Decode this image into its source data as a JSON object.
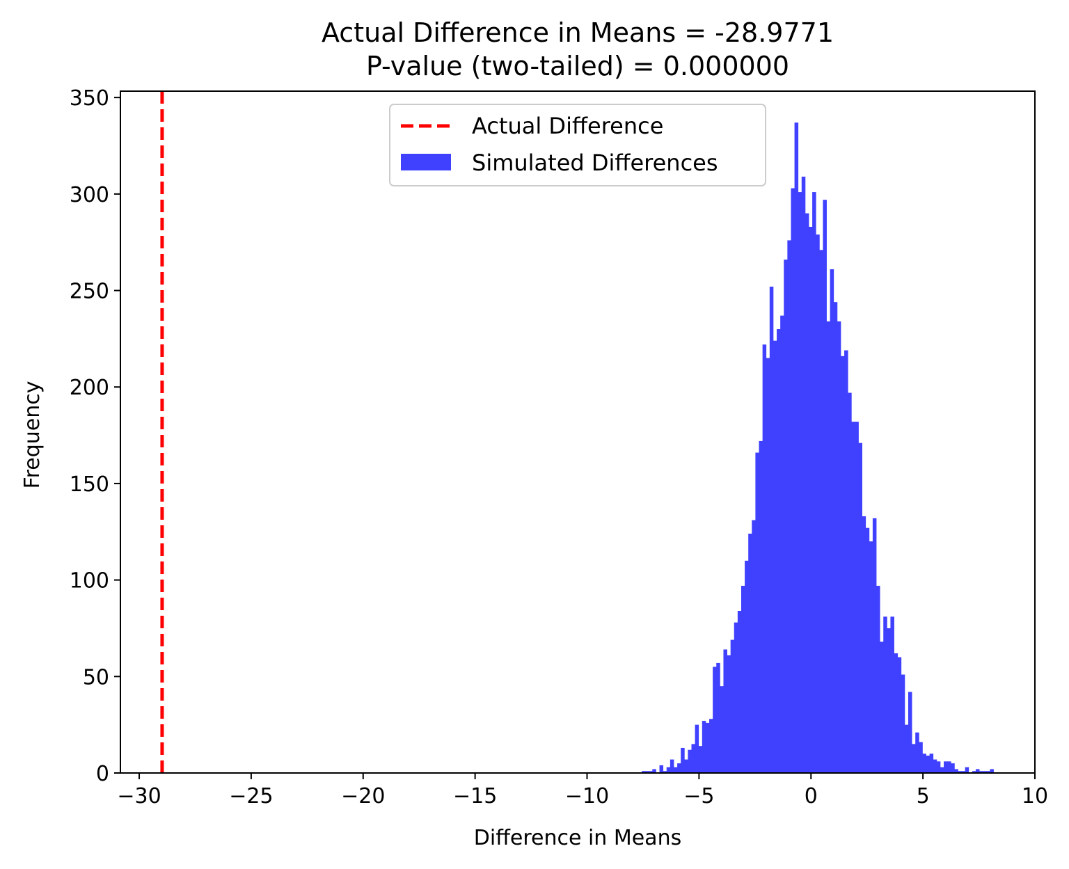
{
  "chart_data": {
    "type": "bar",
    "title_lines": [
      "Actual Difference in Means = -28.9771",
      "P-value (two-tailed) = 0.000000"
    ],
    "xlabel": "Difference in Means",
    "ylabel": "Frequency",
    "xlim": [
      -30.84,
      10
    ],
    "ylim": [
      0,
      353.3
    ],
    "xticks": [
      -30,
      -25,
      -20,
      -15,
      -10,
      -5,
      0,
      5,
      10
    ],
    "xtick_labels": [
      "−30",
      "−25",
      "−20",
      "−15",
      "−10",
      "−5",
      "0",
      "5",
      "10"
    ],
    "yticks": [
      0,
      50,
      100,
      150,
      200,
      250,
      300,
      350
    ],
    "ytick_labels": [
      "0",
      "50",
      "100",
      "150",
      "200",
      "250",
      "300",
      "350"
    ],
    "grid": false,
    "legend_position": "upper-center",
    "histogram": {
      "name": "Simulated Differences",
      "color": "#4040ff",
      "bin_start": -7.56,
      "bin_width": 0.1587,
      "counts": [
        1,
        1,
        1,
        2,
        0,
        4,
        1,
        3,
        7,
        3,
        5,
        13,
        7,
        12,
        15,
        25,
        14,
        27,
        26,
        28,
        55,
        57,
        45,
        64,
        61,
        69,
        78,
        84,
        97,
        110,
        124,
        131,
        166,
        172,
        222,
        215,
        252,
        224,
        230,
        237,
        266,
        276,
        303,
        337,
        301,
        309,
        290,
        283,
        301,
        279,
        271,
        297,
        234,
        261,
        244,
        234,
        216,
        219,
        197,
        182,
        182,
        171,
        133,
        127,
        120,
        132,
        97,
        68,
        81,
        75,
        81,
        62,
        60,
        51,
        25,
        42,
        15,
        21,
        16,
        10,
        9,
        10,
        7,
        6,
        3,
        6,
        6,
        5,
        2,
        1,
        1,
        3,
        0,
        1,
        2,
        1,
        1,
        1,
        2
      ]
    },
    "vline": {
      "name": "Actual Difference",
      "x": -28.9771,
      "color": "#ff0000",
      "style": "dashed"
    }
  }
}
